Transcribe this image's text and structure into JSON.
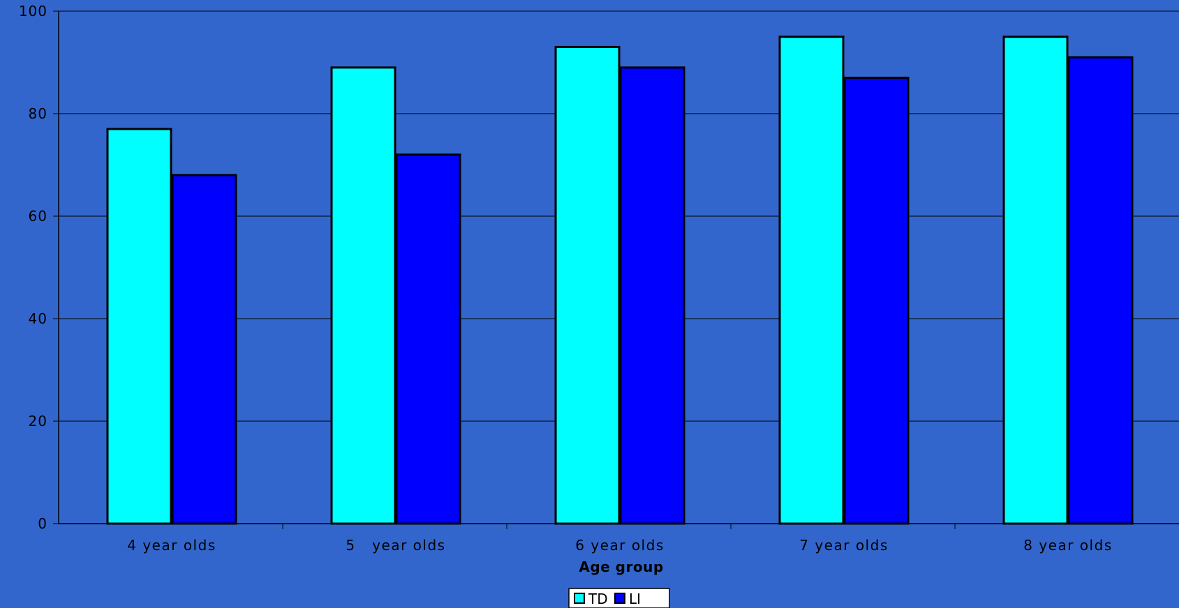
{
  "chart_data": {
    "type": "bar",
    "title": "",
    "xlabel": "Age group",
    "ylabel": "",
    "categories": [
      "4 year olds",
      "5   year olds",
      "6 year olds",
      "7 year olds",
      "8 year olds"
    ],
    "series": [
      {
        "name": "TD",
        "color": "#00ffff",
        "values": [
          77,
          89,
          93,
          95,
          95
        ]
      },
      {
        "name": "LI",
        "color": "#0000ff",
        "values": [
          68,
          72,
          89,
          87,
          91
        ]
      }
    ],
    "ylim": [
      0,
      100
    ],
    "yticks": [
      0,
      20,
      40,
      60,
      80,
      100
    ],
    "grid": true,
    "legend_position": "bottom",
    "background_color": "#3366cc",
    "gridline_color": "#000000"
  }
}
